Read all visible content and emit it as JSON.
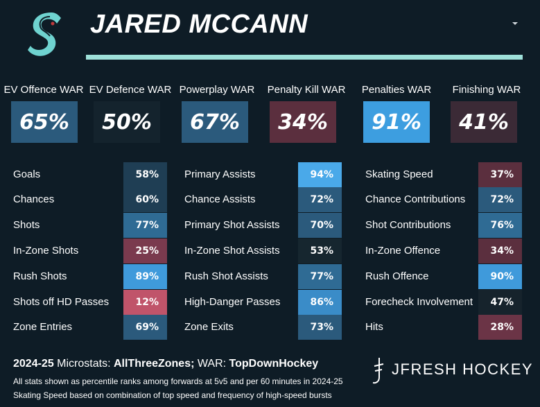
{
  "player": {
    "name": "JARED MCCANN",
    "team_logo": "kraken-s-logo"
  },
  "war": [
    {
      "label": "EV Offence WAR",
      "value": "65%",
      "color": "#2b5a7c"
    },
    {
      "label": "EV Defence WAR",
      "value": "50%",
      "color": "#14232d"
    },
    {
      "label": "Powerplay WAR",
      "value": "67%",
      "color": "#2b5a7c"
    },
    {
      "label": "Penalty Kill WAR",
      "value": "34%",
      "color": "#5b2f3e"
    },
    {
      "label": "Penalties WAR",
      "value": "91%",
      "color": "#3d9ee0"
    },
    {
      "label": "Finishing WAR",
      "value": "41%",
      "color": "#3b2a36"
    }
  ],
  "stats": [
    [
      {
        "label": "Goals",
        "value": "58%",
        "color": "#1f3e54"
      },
      {
        "label": "Chances",
        "value": "60%",
        "color": "#1f3e54"
      },
      {
        "label": "Shots",
        "value": "77%",
        "color": "#2f6b94"
      },
      {
        "label": "In-Zone Shots",
        "value": "25%",
        "color": "#7a3a4e"
      },
      {
        "label": "Rush Shots",
        "value": "89%",
        "color": "#3f9adb"
      },
      {
        "label": "Shots off HD Passes",
        "value": "12%",
        "color": "#c0546a"
      },
      {
        "label": "Zone Entries",
        "value": "69%",
        "color": "#2b5a7c"
      }
    ],
    [
      {
        "label": "Primary Assists",
        "value": "94%",
        "color": "#4aa9e9"
      },
      {
        "label": "Chance Assists",
        "value": "72%",
        "color": "#2b5a7c"
      },
      {
        "label": "Primary Shot Assists",
        "value": "70%",
        "color": "#2b5a7c"
      },
      {
        "label": "In-Zone Shot Assists",
        "value": "53%",
        "color": "#16262f"
      },
      {
        "label": "Rush Shot Assists",
        "value": "77%",
        "color": "#2f6b94"
      },
      {
        "label": "High-Danger Passes",
        "value": "86%",
        "color": "#3a8cc8"
      },
      {
        "label": "Zone Exits",
        "value": "73%",
        "color": "#2b5a7c"
      }
    ],
    [
      {
        "label": "Skating Speed",
        "value": "37%",
        "color": "#5b2f3e"
      },
      {
        "label": "Chance Contributions",
        "value": "72%",
        "color": "#2b5a7c"
      },
      {
        "label": "Shot Contributions",
        "value": "76%",
        "color": "#2f6b94"
      },
      {
        "label": "In-Zone Offence",
        "value": "34%",
        "color": "#5b2f3e"
      },
      {
        "label": "Rush Offence",
        "value": "90%",
        "color": "#3f9adb"
      },
      {
        "label": "Forecheck Involvement",
        "value": "47%",
        "color": "#16232c"
      },
      {
        "label": "Hits",
        "value": "28%",
        "color": "#6b3446"
      }
    ]
  ],
  "footer": {
    "season": "2024-25",
    "microstats_label": "Microstats:",
    "microstats_source": "AllThreeZones;",
    "war_label": "WAR:",
    "war_source": "TopDownHockey",
    "note1": "All stats shown as percentile ranks among forwards at 5v5 and per 60 minutes in 2024-25",
    "note2": "Skating Speed based on combination of top speed and frequency of high-speed bursts",
    "brand": "JFRESH HOCKEY"
  }
}
